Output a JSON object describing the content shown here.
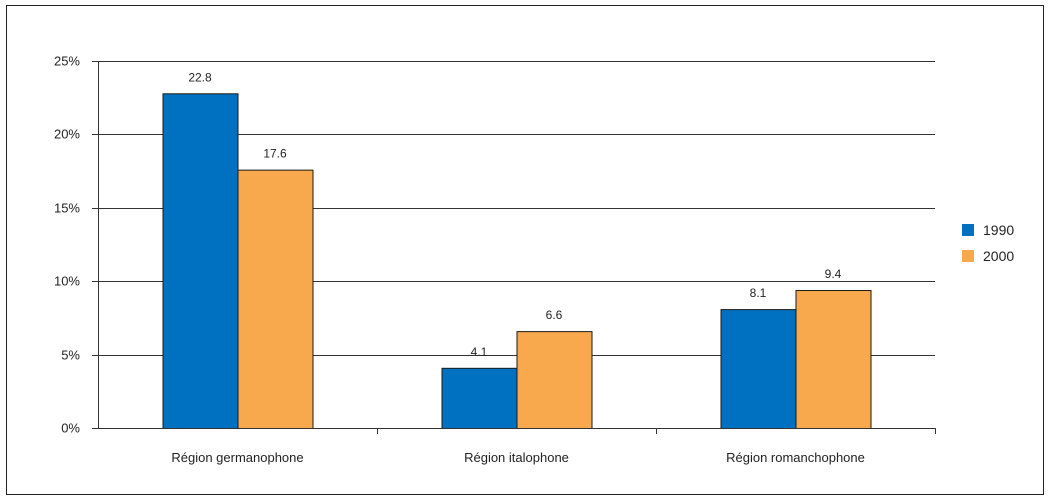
{
  "chart_data": {
    "type": "bar",
    "categories": [
      "Région germanophone",
      "Région italophone",
      "Région romanchophone"
    ],
    "series": [
      {
        "name": "1990",
        "values": [
          22.8,
          4.1,
          8.1
        ],
        "color": "#0070c0"
      },
      {
        "name": "2000",
        "values": [
          17.6,
          6.6,
          9.4
        ],
        "color": "#f8a94d"
      }
    ],
    "data_labels": [
      [
        "22.8",
        "4.1",
        "8.1"
      ],
      [
        "17.6",
        "6.6",
        "9.4"
      ]
    ],
    "ylim": [
      0,
      25
    ],
    "yticks": [
      0,
      5,
      10,
      15,
      20,
      25
    ],
    "ytick_labels": [
      "0%",
      "5%",
      "10%",
      "15%",
      "20%",
      "25%"
    ],
    "grid": true,
    "legend": "right",
    "title": "",
    "xlabel": "",
    "ylabel": ""
  }
}
